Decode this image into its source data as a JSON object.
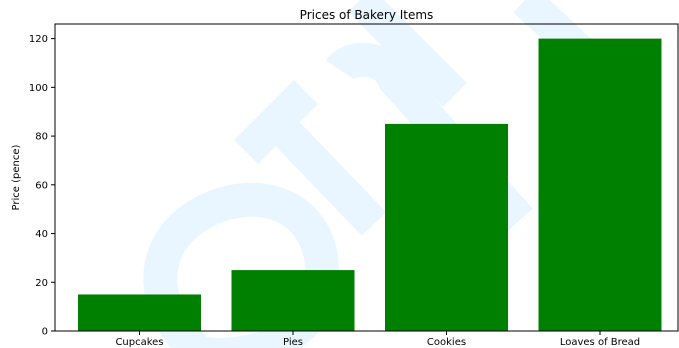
{
  "chart_data": {
    "type": "bar",
    "title": "Prices of Bakery Items",
    "xlabel": "",
    "ylabel": "Price (pence)",
    "categories": [
      "Cupcakes",
      "Pies",
      "Cookies",
      "Loaves of Bread"
    ],
    "values": [
      15,
      25,
      85,
      120
    ],
    "ylim": [
      0,
      126
    ],
    "yticks": [
      0,
      20,
      40,
      60,
      80,
      100,
      120
    ],
    "grid": false,
    "bar_color": "#008000",
    "axis_color": "#000000"
  }
}
